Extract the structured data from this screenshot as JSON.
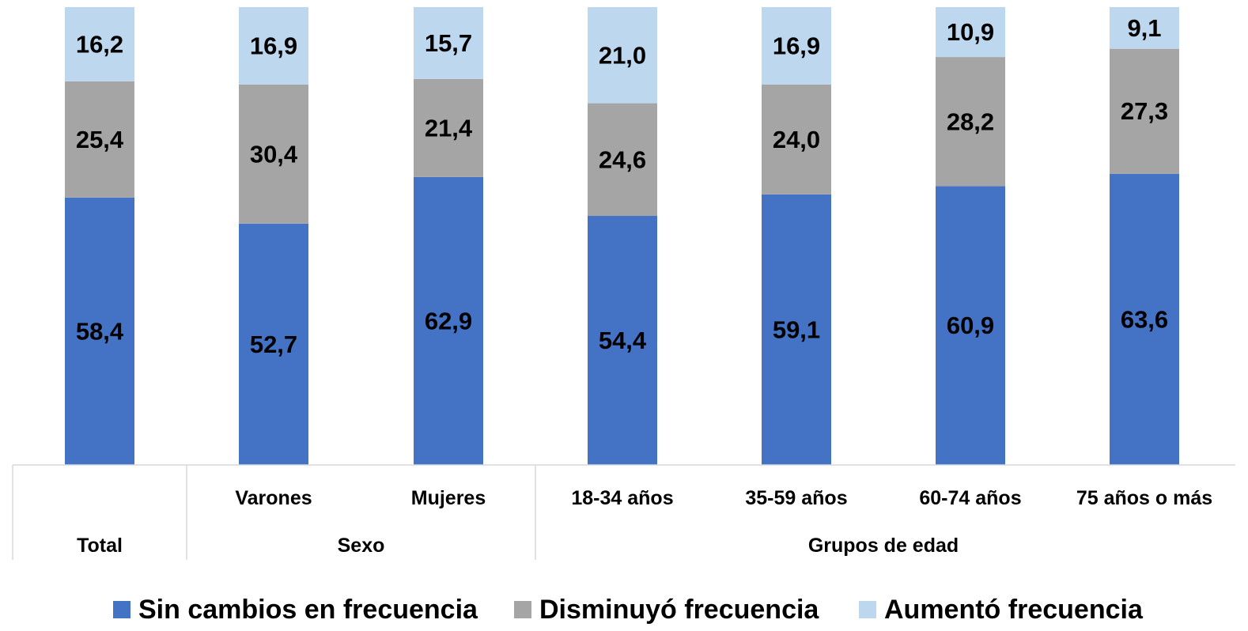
{
  "chart_data": {
    "type": "bar",
    "stacked": true,
    "percent_stacked": true,
    "categories": [
      "Total",
      "Varones",
      "Mujeres",
      "18-34 años",
      "35-59 años",
      "60-74 años",
      "75 años o más"
    ],
    "category_groups": [
      {
        "label": "Total",
        "members": [
          "Total"
        ],
        "show_member_labels": false
      },
      {
        "label": "Sexo",
        "members": [
          "Varones",
          "Mujeres"
        ],
        "show_member_labels": true
      },
      {
        "label": "Grupos de edad",
        "members": [
          "18-34 años",
          "35-59 años",
          "60-74 años",
          "75 años o más"
        ],
        "show_member_labels": true
      }
    ],
    "series": [
      {
        "name": "Sin cambios en frecuencia",
        "color": "#4472c4",
        "values": [
          58.4,
          52.7,
          62.9,
          54.4,
          59.1,
          60.9,
          63.6
        ],
        "labels": [
          "58,4",
          "52,7",
          "62,9",
          "54,4",
          "59,1",
          "60,9",
          "63,6"
        ]
      },
      {
        "name": "Disminuyó frecuencia",
        "color": "#a5a5a5",
        "values": [
          25.4,
          30.4,
          21.4,
          24.6,
          24.0,
          28.2,
          27.3
        ],
        "labels": [
          "25,4",
          "30,4",
          "21,4",
          "24,6",
          "24,0",
          "28,2",
          "27,3"
        ]
      },
      {
        "name": "Aumentó frecuencia",
        "color": "#bdd7ee",
        "values": [
          16.2,
          16.9,
          15.7,
          21.0,
          16.9,
          10.9,
          9.1
        ],
        "labels": [
          "16,2",
          "16,9",
          "15,7",
          "21,0",
          "16,9",
          "10,9",
          "9,1"
        ]
      }
    ],
    "ylim": [
      0,
      100
    ],
    "grid": false,
    "legend": "bottom",
    "data_labels": true
  }
}
